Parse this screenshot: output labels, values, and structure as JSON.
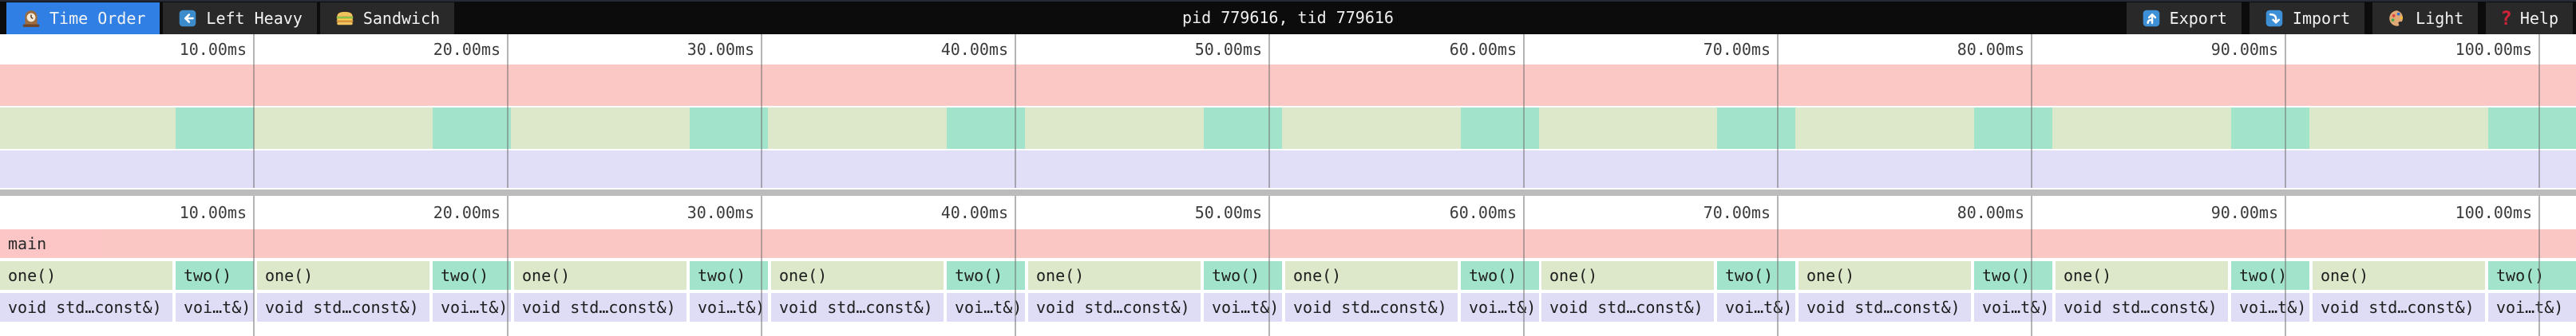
{
  "topbar": {
    "tabs": [
      {
        "label": "Time Order",
        "icon": "clock-icon",
        "active": true
      },
      {
        "label": "Left Heavy",
        "icon": "arrow-left-icon",
        "active": false
      },
      {
        "label": "Sandwich",
        "icon": "sandwich-icon",
        "active": false
      }
    ],
    "title": "pid 779616, tid 779616",
    "actions": [
      {
        "label": "Export",
        "icon": "export-icon"
      },
      {
        "label": "Import",
        "icon": "import-icon"
      },
      {
        "label": "Light",
        "icon": "palette-icon"
      },
      {
        "label": "Help",
        "icon": "help-icon"
      }
    ]
  },
  "icons": {
    "clock-icon": "mantel-clock",
    "arrow-left-icon": "left-arrow",
    "sandwich-icon": "sandwich",
    "export-icon": "up-arrow",
    "import-icon": "down-arrow",
    "palette-icon": "artist-palette",
    "help_glyph": "?"
  },
  "ruler": {
    "unit": "ms",
    "ticks": [
      "10.00ms",
      "20.00ms",
      "30.00ms",
      "40.00ms",
      "50.00ms",
      "60.00ms",
      "70.00ms",
      "80.00ms",
      "90.00ms",
      "100.00ms"
    ]
  },
  "timing": {
    "tick_interval_ms": 10,
    "total_ms": 101.45,
    "cycles": 10,
    "cycle_period_ms": 10.12,
    "one_duration_ms": 6.79,
    "two_duration_ms": 3.08
  },
  "frames": {
    "root_label": "main",
    "one_label": "one()",
    "two_label": "two()",
    "one_child_label": "void std…const&)",
    "two_child_label": "voi…t&)"
  },
  "colors": {
    "root": "#fbc4c2",
    "one": "#dde8ca",
    "two": "#a2e4cb",
    "child": "#dfddf6",
    "active_tab": "#2f7fe4",
    "grid_line": "#696969",
    "separator": "#bcbcbc",
    "topbar_bg": "#0c0c0c",
    "button_bg": "#292929"
  }
}
